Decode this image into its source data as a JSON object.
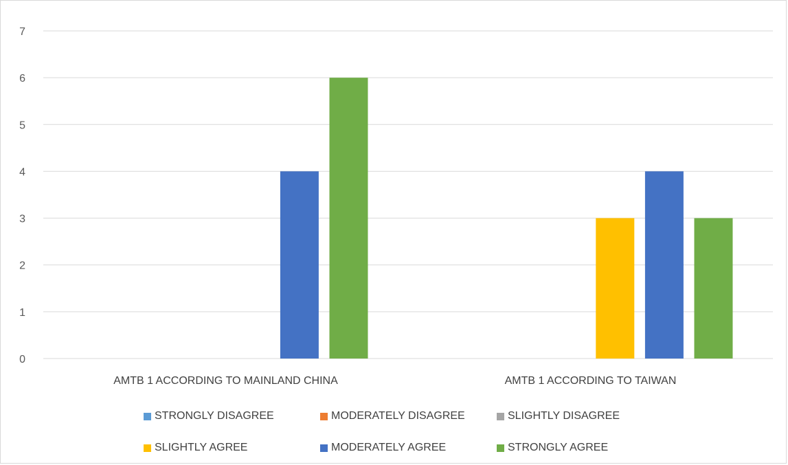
{
  "chart_data": {
    "type": "bar",
    "title": "",
    "xlabel": "",
    "ylabel": "",
    "ylim": [
      0,
      7
    ],
    "yticks": [
      "0",
      "1",
      "2",
      "3",
      "4",
      "5",
      "6",
      "7"
    ],
    "grid": true,
    "legend_position": "bottom",
    "categories": [
      "AMTB 1 ACCORDING TO MAINLAND CHINA",
      "AMTB 1 ACCORDING TO TAIWAN"
    ],
    "series": [
      {
        "name": "STRONGLY DISAGREE",
        "color": "#5b9bd5",
        "values": [
          0,
          0
        ]
      },
      {
        "name": "MODERATELY DISAGREE",
        "color": "#ed7d31",
        "values": [
          0,
          0
        ]
      },
      {
        "name": "SLIGHTLY DISAGREE",
        "color": "#a5a5a5",
        "values": [
          0,
          0
        ]
      },
      {
        "name": "SLIGHTLY AGREE",
        "color": "#ffc000",
        "values": [
          0,
          3
        ]
      },
      {
        "name": "MODERATELY AGREE",
        "color": "#4472c4",
        "values": [
          4,
          4
        ]
      },
      {
        "name": "STRONGLY AGREE",
        "color": "#70ad47",
        "values": [
          6,
          3
        ]
      }
    ]
  }
}
